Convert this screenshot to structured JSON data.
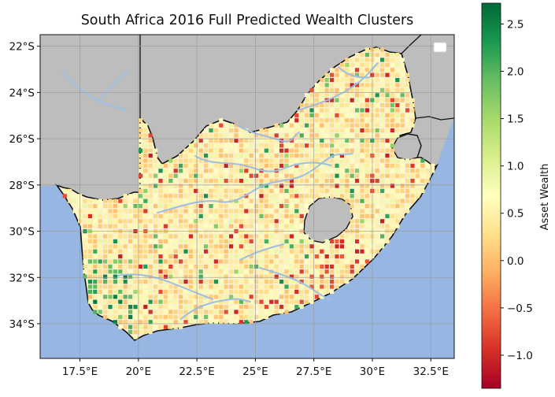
{
  "title": "South Africa 2016 Full Predicted Wealth Clusters",
  "colorbar": {
    "label": "Asset Wealth",
    "min": -1.35,
    "max": 2.72,
    "ticks": [
      "2.5",
      "2.0",
      "1.5",
      "1.0",
      "0.5",
      "0.0",
      "−0.5",
      "−1.0"
    ],
    "tick_values": [
      2.5,
      2.0,
      1.5,
      1.0,
      0.5,
      0.0,
      -0.5,
      -1.0
    ],
    "colormap": "RdYlGn",
    "stops": [
      "#a50026",
      "#d73027",
      "#f46d43",
      "#fdae61",
      "#fee08b",
      "#ffffbf",
      "#d9ef8b",
      "#a6d96a",
      "#66bd63",
      "#1a9850",
      "#006837"
    ]
  },
  "map": {
    "lon_range": [
      15.8,
      33.5
    ],
    "lat_range": [
      -35.5,
      -21.5
    ],
    "x_ticks": [
      {
        "value": 17.5,
        "label": "17.5°E"
      },
      {
        "value": 20.0,
        "label": "20°E"
      },
      {
        "value": 22.5,
        "label": "22.5°E"
      },
      {
        "value": 25.0,
        "label": "25°E"
      },
      {
        "value": 27.5,
        "label": "27.5°E"
      },
      {
        "value": 30.0,
        "label": "30°E"
      },
      {
        "value": 32.5,
        "label": "32.5°E"
      }
    ],
    "y_ticks": [
      {
        "value": -22,
        "label": "22°S"
      },
      {
        "value": -24,
        "label": "24°S"
      },
      {
        "value": -26,
        "label": "26°S"
      },
      {
        "value": -28,
        "label": "28°S"
      },
      {
        "value": -30,
        "label": "30°S"
      },
      {
        "value": -32,
        "label": "32°S"
      },
      {
        "value": -34,
        "label": "34°S"
      }
    ],
    "grid": true,
    "legend": "top-right, empty",
    "colors": {
      "ocean": "#97b6e1",
      "land_other": "#bdbdbd",
      "rivers": "#9ebfe3",
      "border": "#111111",
      "gridline": "#9a9a9a"
    }
  }
}
